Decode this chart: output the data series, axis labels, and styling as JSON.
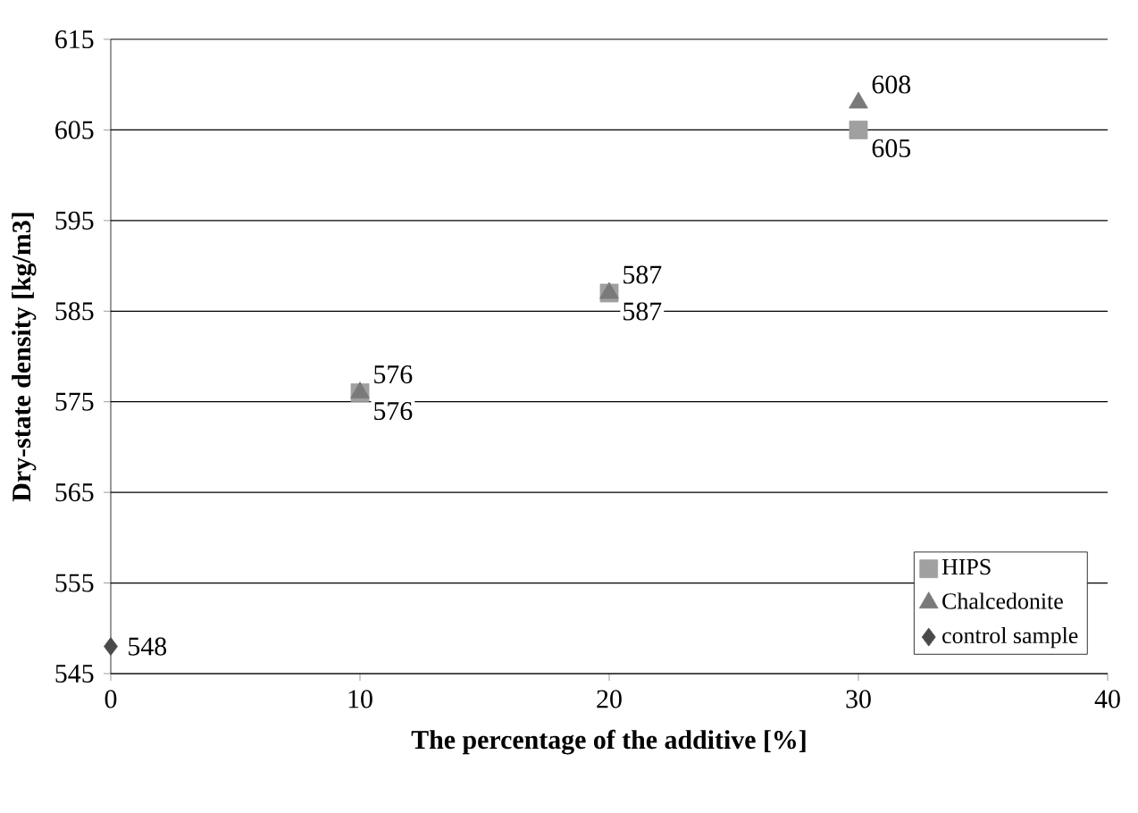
{
  "chart_data": {
    "type": "scatter",
    "xlabel": "The percentage of the additive [%]",
    "ylabel": "Dry-state density [kg/m3]",
    "xlim": [
      0,
      40
    ],
    "xticks": [
      0,
      10,
      20,
      30,
      40
    ],
    "ylim": [
      545,
      615
    ],
    "yticks": [
      545,
      555,
      565,
      575,
      585,
      595,
      605,
      615
    ],
    "grid": "y",
    "legend": "bottom right",
    "data_labels": true,
    "series": [
      {
        "name": "HIPS",
        "color": "#a0a0a0",
        "marker": "square",
        "x": [
          10,
          20,
          30
        ],
        "values": [
          576,
          587,
          605
        ]
      },
      {
        "name": "Chalcedonite",
        "color": "#7a7a7a",
        "marker": "triangle",
        "x": [
          10,
          20,
          30
        ],
        "values": [
          576,
          587,
          608
        ]
      },
      {
        "name": "control sample",
        "color": "#4a4a4a",
        "marker": "diamond",
        "x": [
          0
        ],
        "values": [
          548
        ]
      }
    ]
  }
}
